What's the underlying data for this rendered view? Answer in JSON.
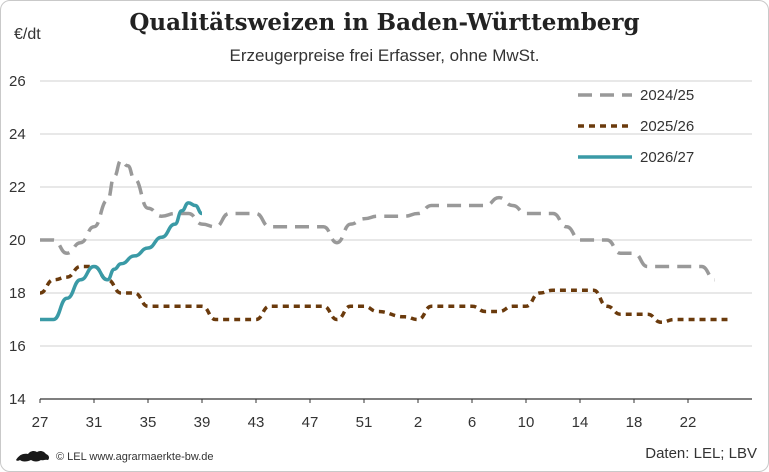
{
  "chart_data": {
    "type": "line",
    "title": "Qualitätsweizen in Baden-Württemberg",
    "subtitle": "Erzeugerpreise frei Erfasser, ohne MwSt.",
    "ylabel": "€/dt",
    "ylim": [
      14,
      26
    ],
    "yticks": [
      14,
      16,
      18,
      20,
      22,
      24,
      26
    ],
    "x_tick_labels": [
      "27",
      "31",
      "35",
      "39",
      "43",
      "47",
      "51",
      "2",
      "6",
      "10",
      "14",
      "18",
      "22"
    ],
    "grid": "horizontal",
    "legend": "top-right",
    "series": [
      {
        "name": "2024/25",
        "color": "#999999",
        "style": "dashed",
        "x": [
          "27",
          "28",
          "29",
          "30",
          "31",
          "32",
          "32.5",
          "33",
          "33.5",
          "34",
          "35",
          "36",
          "37",
          "38",
          "39",
          "40",
          "41",
          "42",
          "43",
          "44",
          "45",
          "46",
          "47",
          "48",
          "49",
          "50",
          "51",
          "52",
          "1",
          "2",
          "3",
          "4",
          "5",
          "6",
          "7",
          "8",
          "9",
          "10",
          "11",
          "12",
          "13",
          "14",
          "15",
          "16",
          "17",
          "18",
          "19",
          "20",
          "21",
          "22",
          "23",
          "24"
        ],
        "values": [
          20.0,
          20.0,
          19.5,
          19.9,
          20.5,
          21.5,
          22.4,
          23.0,
          22.8,
          22.3,
          21.2,
          20.9,
          21.0,
          21.0,
          20.6,
          20.5,
          21.0,
          21.0,
          21.0,
          20.5,
          20.5,
          20.5,
          20.5,
          20.5,
          19.9,
          20.6,
          20.8,
          20.9,
          20.9,
          21.0,
          21.3,
          21.3,
          21.3,
          21.3,
          21.3,
          21.6,
          21.3,
          21.0,
          21.0,
          21.0,
          20.5,
          20.0,
          20.0,
          20.0,
          19.5,
          19.5,
          19.0,
          19.0,
          19.0,
          19.0,
          19.0,
          18.5
        ]
      },
      {
        "name": "2025/26",
        "color": "#6a3a0c",
        "style": "dotted",
        "x": [
          "27",
          "28",
          "29",
          "30",
          "31",
          "32",
          "33",
          "34",
          "35",
          "36",
          "37",
          "38",
          "39",
          "40",
          "41",
          "42",
          "43",
          "44",
          "45",
          "46",
          "47",
          "48",
          "49",
          "50",
          "51",
          "52",
          "1",
          "2",
          "3",
          "4",
          "5",
          "6",
          "7",
          "8",
          "9",
          "10",
          "11",
          "12",
          "13",
          "14",
          "15",
          "16",
          "17",
          "18",
          "19",
          "20",
          "21",
          "22",
          "23",
          "24",
          "25"
        ],
        "values": [
          18.0,
          18.5,
          18.6,
          19.0,
          19.0,
          18.5,
          18.0,
          18.0,
          17.5,
          17.5,
          17.5,
          17.5,
          17.5,
          17.0,
          17.0,
          17.0,
          17.0,
          17.5,
          17.5,
          17.5,
          17.5,
          17.5,
          17.0,
          17.5,
          17.5,
          17.3,
          17.1,
          17.0,
          17.5,
          17.5,
          17.5,
          17.5,
          17.3,
          17.3,
          17.5,
          17.5,
          18.0,
          18.1,
          18.1,
          18.1,
          18.1,
          17.5,
          17.2,
          17.2,
          17.2,
          16.9,
          17.0,
          17.0,
          17.0,
          17.0,
          17.0
        ]
      },
      {
        "name": "2026/27",
        "color": "#3a9aa6",
        "style": "solid",
        "x": [
          "27",
          "28",
          "29",
          "30",
          "31",
          "32",
          "32.5",
          "33",
          "34",
          "35",
          "36",
          "37",
          "37.5",
          "38",
          "38.5",
          "39"
        ],
        "values": [
          17.0,
          17.0,
          17.8,
          18.5,
          19.0,
          18.5,
          18.9,
          19.1,
          19.4,
          19.7,
          20.1,
          20.6,
          21.1,
          21.4,
          21.3,
          21.0
        ]
      }
    ]
  },
  "footer": {
    "copyright": "© LEL www.agrarmaerkte-bw.de",
    "source": "Daten: LEL; LBV"
  }
}
